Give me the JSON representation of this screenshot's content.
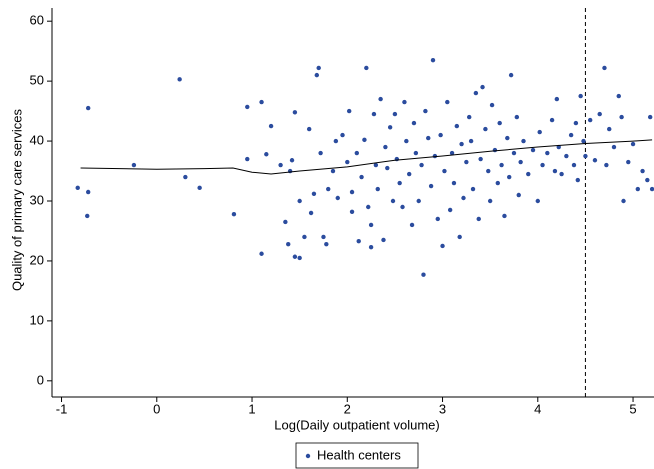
{
  "chart_data": {
    "type": "scatter",
    "x_label": "Log(Daily outpatient volume)",
    "y_label": "Quality of primary care services",
    "xlim": [
      -1.1,
      5.22
    ],
    "ylim": [
      -2.7,
      62.2
    ],
    "xticks": [
      -1,
      0,
      1,
      2,
      3,
      4,
      5
    ],
    "yticks": [
      0,
      10,
      20,
      30,
      40,
      50,
      60
    ],
    "vline": 4.5,
    "series": [
      {
        "name": "Health centers",
        "color": "#2b4c9e",
        "x": [
          -0.83,
          -0.72,
          -0.73,
          -0.72,
          -0.24,
          0.24,
          0.3,
          0.45,
          0.81,
          1.1,
          1.1,
          0.95,
          0.95,
          1.15,
          1.2,
          1.3,
          1.35,
          1.38,
          1.4,
          1.42,
          1.45,
          1.45,
          1.5,
          1.5,
          1.55,
          1.6,
          1.62,
          1.65,
          1.68,
          1.7,
          1.72,
          1.75,
          1.78,
          1.8,
          1.85,
          1.88,
          1.9,
          1.95,
          2.0,
          2.02,
          2.05,
          2.05,
          2.1,
          2.12,
          2.15,
          2.18,
          2.2,
          2.22,
          2.25,
          2.25,
          2.28,
          2.3,
          2.32,
          2.35,
          2.38,
          2.4,
          2.42,
          2.45,
          2.48,
          2.5,
          2.52,
          2.55,
          2.58,
          2.6,
          2.62,
          2.65,
          2.68,
          2.7,
          2.72,
          2.75,
          2.78,
          2.8,
          2.82,
          2.85,
          2.88,
          2.9,
          2.92,
          2.95,
          2.98,
          3.0,
          3.02,
          3.05,
          3.08,
          3.1,
          3.12,
          3.15,
          3.18,
          3.2,
          3.22,
          3.25,
          3.28,
          3.3,
          3.32,
          3.35,
          3.38,
          3.4,
          3.42,
          3.45,
          3.48,
          3.5,
          3.52,
          3.55,
          3.58,
          3.6,
          3.62,
          3.65,
          3.68,
          3.7,
          3.72,
          3.75,
          3.78,
          3.8,
          3.82,
          3.85,
          3.9,
          3.95,
          4.0,
          4.02,
          4.05,
          4.1,
          4.15,
          4.18,
          4.2,
          4.22,
          4.25,
          4.3,
          4.35,
          4.38,
          4.4,
          4.42,
          4.45,
          4.48,
          4.5,
          4.55,
          4.6,
          4.65,
          4.7,
          4.72,
          4.75,
          4.8,
          4.85,
          4.88,
          4.9,
          4.95,
          5.0,
          5.05,
          5.1,
          5.15,
          5.2,
          5.18
        ],
        "values": [
          32.2,
          31.5,
          27.5,
          45.5,
          36,
          50.3,
          34,
          32.2,
          27.8,
          21.2,
          46.5,
          45.7,
          37,
          37.8,
          42.5,
          36,
          26.5,
          22.8,
          35,
          36.8,
          44.8,
          20.7,
          20.5,
          30,
          24,
          42,
          28,
          31.2,
          51,
          52.2,
          38,
          24,
          22.8,
          32,
          35,
          40,
          30.5,
          41,
          36.5,
          45,
          31.5,
          28.2,
          38,
          23.3,
          34,
          40.2,
          52.2,
          29,
          26,
          22.3,
          44.5,
          36,
          32,
          47,
          23.5,
          39,
          35.5,
          42.3,
          30,
          44.5,
          37,
          33,
          29,
          46.5,
          40,
          34.5,
          26,
          43,
          38,
          30,
          36,
          17.7,
          45,
          40.5,
          32.5,
          53.5,
          37.5,
          27,
          41,
          22.5,
          35,
          46.5,
          28.5,
          38,
          33,
          42.5,
          24,
          39.5,
          30.5,
          36.5,
          44,
          40,
          32,
          48,
          27,
          37,
          49,
          42,
          35,
          30,
          46,
          38.5,
          33,
          43,
          36,
          27.5,
          40.5,
          34,
          51,
          38,
          44,
          31,
          36.5,
          40,
          34.5,
          38.5,
          30,
          41.5,
          36,
          38,
          43.5,
          35,
          47,
          39,
          34.5,
          37.5,
          41,
          36,
          43,
          33.5,
          47.5,
          40,
          37.5,
          43.5,
          36.8,
          44.5,
          52.2,
          36,
          42,
          39,
          47.5,
          44,
          30,
          36.5,
          39.5,
          32,
          35,
          33.5,
          32,
          44
        ]
      }
    ],
    "lines": [
      {
        "color": "#000000",
        "x": [
          -0.8,
          0,
          0.5,
          0.8,
          1.0,
          1.2,
          1.5,
          2,
          2.5,
          3,
          3.5,
          4,
          4.5,
          5,
          5.2
        ],
        "values": [
          35.5,
          35.3,
          35.4,
          35.5,
          34.8,
          34.5,
          35,
          35.7,
          36.8,
          37.5,
          38.3,
          39,
          39.6,
          40,
          40.2
        ]
      }
    ]
  }
}
